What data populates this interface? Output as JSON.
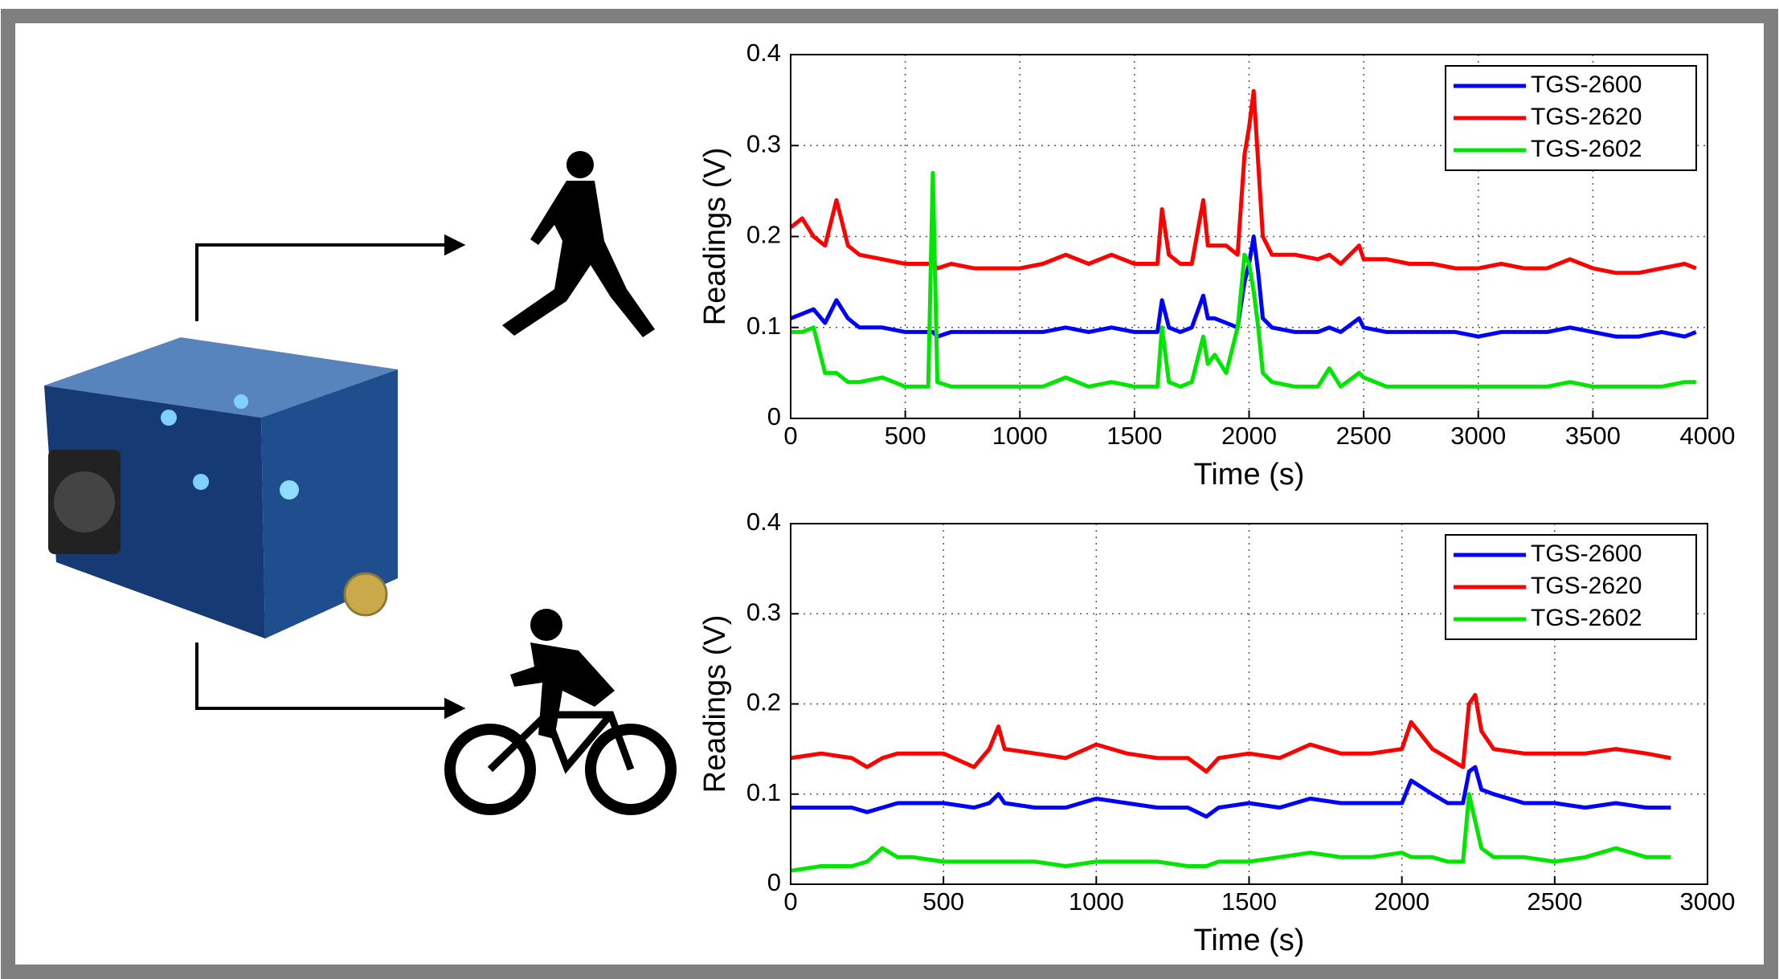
{
  "chart_data": [
    {
      "type": "line",
      "xlabel": "Time (s)",
      "ylabel": "Readings (V)",
      "x": [
        0,
        50,
        100,
        150,
        200,
        250,
        300,
        400,
        500,
        600,
        620,
        640,
        700,
        800,
        900,
        1000,
        1100,
        1200,
        1300,
        1400,
        1500,
        1600,
        1620,
        1650,
        1700,
        1750,
        1800,
        1820,
        1850,
        1900,
        1950,
        1980,
        2000,
        2020,
        2040,
        2060,
        2100,
        2200,
        2300,
        2350,
        2400,
        2480,
        2500,
        2600,
        2700,
        2800,
        2900,
        3000,
        3100,
        3200,
        3300,
        3400,
        3500,
        3600,
        3700,
        3800,
        3900,
        3950
      ],
      "series": [
        {
          "name": "TGS-2600",
          "color": "#0000ff",
          "values": [
            0.11,
            0.115,
            0.12,
            0.105,
            0.13,
            0.11,
            0.1,
            0.1,
            0.095,
            0.095,
            0.095,
            0.09,
            0.095,
            0.095,
            0.095,
            0.095,
            0.095,
            0.1,
            0.095,
            0.1,
            0.095,
            0.095,
            0.13,
            0.1,
            0.095,
            0.1,
            0.135,
            0.11,
            0.11,
            0.105,
            0.1,
            0.15,
            0.17,
            0.2,
            0.16,
            0.11,
            0.1,
            0.095,
            0.095,
            0.1,
            0.095,
            0.11,
            0.1,
            0.095,
            0.095,
            0.095,
            0.095,
            0.09,
            0.095,
            0.095,
            0.095,
            0.1,
            0.095,
            0.09,
            0.09,
            0.095,
            0.09,
            0.095
          ]
        },
        {
          "name": "TGS-2620",
          "color": "#ff0000",
          "values": [
            0.21,
            0.22,
            0.2,
            0.19,
            0.24,
            0.19,
            0.18,
            0.175,
            0.17,
            0.17,
            0.17,
            0.165,
            0.17,
            0.165,
            0.165,
            0.165,
            0.17,
            0.18,
            0.17,
            0.18,
            0.17,
            0.17,
            0.23,
            0.18,
            0.17,
            0.17,
            0.24,
            0.19,
            0.19,
            0.19,
            0.18,
            0.29,
            0.32,
            0.36,
            0.28,
            0.2,
            0.18,
            0.18,
            0.175,
            0.18,
            0.17,
            0.19,
            0.175,
            0.175,
            0.17,
            0.17,
            0.165,
            0.165,
            0.17,
            0.165,
            0.165,
            0.175,
            0.165,
            0.16,
            0.16,
            0.165,
            0.17,
            0.165
          ]
        },
        {
          "name": "TGS-2602",
          "color": "#00e600",
          "values": [
            0.095,
            0.095,
            0.1,
            0.05,
            0.05,
            0.04,
            0.04,
            0.045,
            0.035,
            0.035,
            0.27,
            0.04,
            0.035,
            0.035,
            0.035,
            0.035,
            0.035,
            0.045,
            0.035,
            0.04,
            0.035,
            0.035,
            0.1,
            0.04,
            0.035,
            0.04,
            0.09,
            0.06,
            0.07,
            0.05,
            0.1,
            0.18,
            0.17,
            0.14,
            0.1,
            0.05,
            0.04,
            0.035,
            0.035,
            0.055,
            0.035,
            0.05,
            0.045,
            0.035,
            0.035,
            0.035,
            0.035,
            0.035,
            0.035,
            0.035,
            0.035,
            0.04,
            0.035,
            0.035,
            0.035,
            0.035,
            0.04,
            0.04
          ]
        }
      ],
      "xlim": [
        0,
        4000
      ],
      "xticks": [
        0,
        500,
        1000,
        1500,
        2000,
        2500,
        3000,
        3500,
        4000
      ],
      "ylim": [
        0,
        0.4
      ],
      "yticks": [
        0,
        0.1,
        0.2,
        0.3,
        0.4
      ],
      "grid": true,
      "legend": "upper right"
    },
    {
      "type": "line",
      "xlabel": "Time (s)",
      "ylabel": "Readings (V)",
      "x": [
        0,
        100,
        200,
        250,
        300,
        350,
        400,
        500,
        600,
        650,
        680,
        700,
        800,
        900,
        1000,
        1100,
        1200,
        1300,
        1360,
        1400,
        1500,
        1600,
        1700,
        1800,
        1900,
        2000,
        2030,
        2100,
        2150,
        2200,
        2220,
        2240,
        2260,
        2300,
        2400,
        2500,
        2600,
        2700,
        2800,
        2880
      ],
      "series": [
        {
          "name": "TGS-2600",
          "color": "#0000ff",
          "values": [
            0.085,
            0.085,
            0.085,
            0.08,
            0.085,
            0.09,
            0.09,
            0.09,
            0.085,
            0.09,
            0.1,
            0.09,
            0.085,
            0.085,
            0.095,
            0.09,
            0.085,
            0.085,
            0.075,
            0.085,
            0.09,
            0.085,
            0.095,
            0.09,
            0.09,
            0.09,
            0.115,
            0.1,
            0.09,
            0.09,
            0.125,
            0.13,
            0.105,
            0.1,
            0.09,
            0.09,
            0.085,
            0.09,
            0.085,
            0.085
          ]
        },
        {
          "name": "TGS-2620",
          "color": "#ff0000",
          "values": [
            0.14,
            0.145,
            0.14,
            0.13,
            0.14,
            0.145,
            0.145,
            0.145,
            0.13,
            0.15,
            0.175,
            0.15,
            0.145,
            0.14,
            0.155,
            0.145,
            0.14,
            0.14,
            0.125,
            0.14,
            0.145,
            0.14,
            0.155,
            0.145,
            0.145,
            0.15,
            0.18,
            0.15,
            0.14,
            0.13,
            0.2,
            0.21,
            0.17,
            0.15,
            0.145,
            0.145,
            0.145,
            0.15,
            0.145,
            0.14
          ]
        },
        {
          "name": "TGS-2602",
          "color": "#00e600",
          "values": [
            0.015,
            0.02,
            0.02,
            0.025,
            0.04,
            0.03,
            0.03,
            0.025,
            0.025,
            0.025,
            0.025,
            0.025,
            0.025,
            0.02,
            0.025,
            0.025,
            0.025,
            0.02,
            0.02,
            0.025,
            0.025,
            0.03,
            0.035,
            0.03,
            0.03,
            0.035,
            0.03,
            0.03,
            0.025,
            0.025,
            0.1,
            0.07,
            0.04,
            0.03,
            0.03,
            0.025,
            0.03,
            0.04,
            0.03,
            0.03
          ]
        }
      ],
      "xlim": [
        0,
        3000
      ],
      "xticks": [
        0,
        500,
        1000,
        1500,
        2000,
        2500,
        3000
      ],
      "ylim": [
        0,
        0.4
      ],
      "yticks": [
        0,
        0.1,
        0.2,
        0.3,
        0.4
      ],
      "grid": true,
      "legend": "upper right"
    }
  ]
}
